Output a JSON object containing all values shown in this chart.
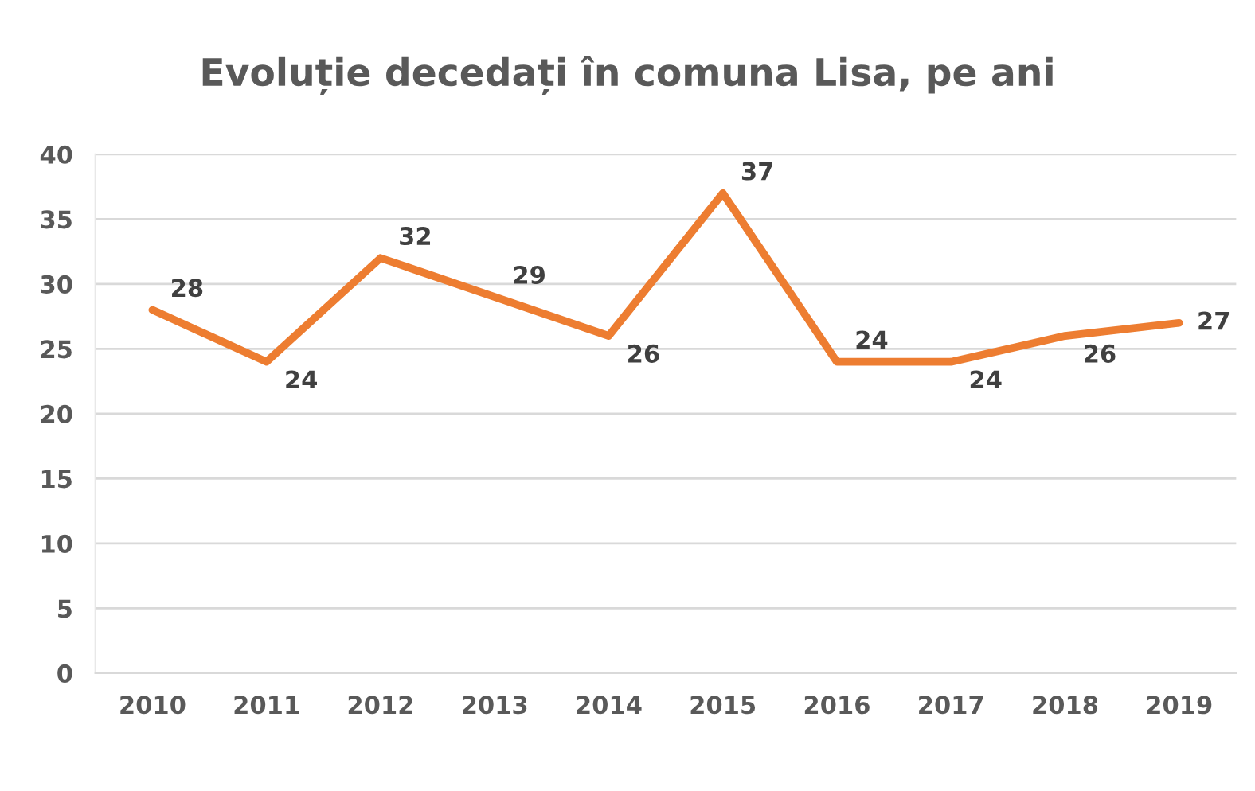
{
  "chart_data": {
    "type": "line",
    "title": "Evoluție decedați în comuna Lisa, pe ani",
    "categories": [
      "2010",
      "2011",
      "2012",
      "2013",
      "2014",
      "2015",
      "2016",
      "2017",
      "2018",
      "2019"
    ],
    "series": [
      {
        "color": "#ed7d31",
        "values": [
          28,
          24,
          32,
          29,
          26,
          37,
          24,
          24,
          26,
          27
        ]
      }
    ],
    "ylim": [
      0,
      40
    ],
    "yticks": [
      0,
      5,
      10,
      15,
      20,
      25,
      30,
      35,
      40
    ],
    "grid": "y",
    "data_labels": true,
    "legend": false,
    "marker": "none",
    "line_style": "solid"
  }
}
